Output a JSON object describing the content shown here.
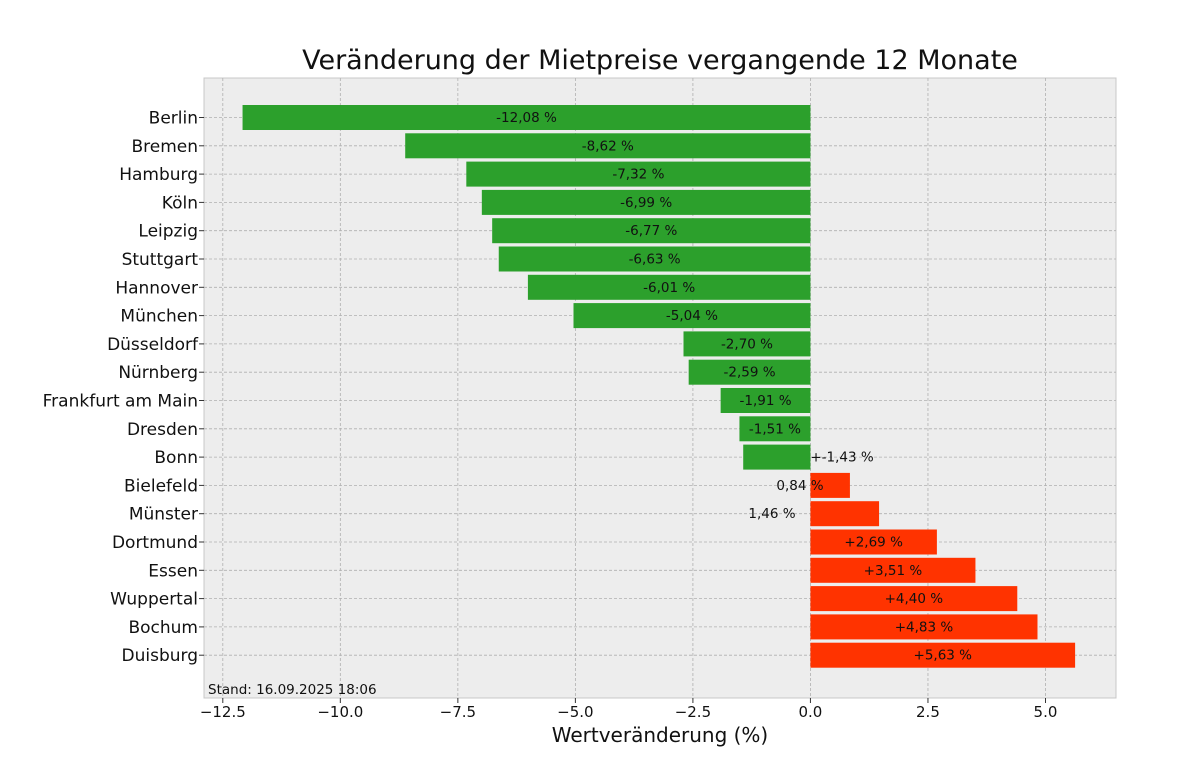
{
  "chart_data": {
    "type": "bar",
    "orientation": "horizontal",
    "title": "Veränderung der Mietpreise vergangende 12 Monate",
    "xlabel": "Wertveränderung (%)",
    "ylabel": "",
    "xlim": [
      -12.9,
      6.5
    ],
    "xticks": [
      {
        "value": -12.5,
        "label": "−12.5"
      },
      {
        "value": -10.0,
        "label": "−10.0"
      },
      {
        "value": -7.5,
        "label": "−7.5"
      },
      {
        "value": -5.0,
        "label": "−5.0"
      },
      {
        "value": -2.5,
        "label": "−2.5"
      },
      {
        "value": 0.0,
        "label": "0.0"
      },
      {
        "value": 2.5,
        "label": "2.5"
      },
      {
        "value": 5.0,
        "label": "5.0"
      }
    ],
    "grid": true,
    "footnote": "Stand: 16.09.2025 18:06",
    "colors": {
      "negative": "#2ca02c",
      "positive": "#ff3300",
      "plot_bg": "#ededed"
    },
    "categories": [
      "Berlin",
      "Bremen",
      "Hamburg",
      "Köln",
      "Leipzig",
      "Stuttgart",
      "Hannover",
      "München",
      "Düsseldorf",
      "Nürnberg",
      "Frankfurt am Main",
      "Dresden",
      "Bonn",
      "Bielefeld",
      "Münster",
      "Dortmund",
      "Essen",
      "Wuppertal",
      "Bochum",
      "Duisburg"
    ],
    "values": [
      -12.08,
      -8.62,
      -7.32,
      -6.99,
      -6.77,
      -6.63,
      -6.01,
      -5.04,
      -2.7,
      -2.59,
      -1.91,
      -1.51,
      -1.43,
      0.84,
      1.46,
      2.69,
      3.51,
      4.4,
      4.83,
      5.63
    ],
    "labels": [
      "-12,08 %",
      "-8,62 %",
      "-7,32 %",
      "-6,99 %",
      "-6,77 %",
      "-6,63 %",
      "-6,01 %",
      "-5,04 %",
      "-2,70 %",
      "-2,59 %",
      "-1,91 %",
      "-1,51 %",
      "+-1,43 %",
      "0,84 %",
      "1,46 %",
      "+2,69 %",
      "+3,51 %",
      "+4,40 %",
      "+4,83 %",
      "+5,63 %"
    ]
  }
}
